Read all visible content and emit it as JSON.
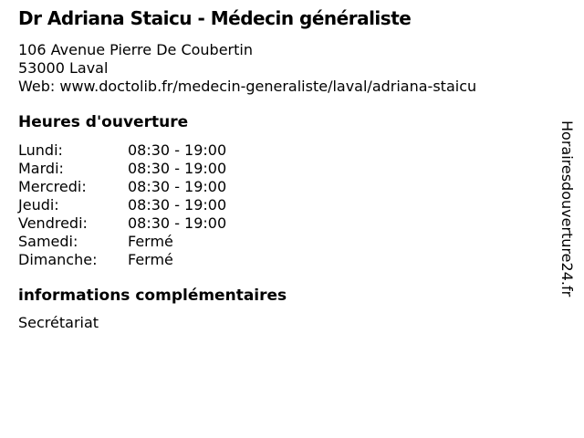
{
  "colors": {
    "background": "#ffffff",
    "text": "#000000"
  },
  "header": {
    "title": "Dr Adriana Staicu - Médecin généraliste",
    "address_line1": "106 Avenue Pierre De Coubertin",
    "address_line2": "53000 Laval",
    "web_label": "Web: ",
    "web_url": "www.doctolib.fr/medecin-generaliste/laval/adriana-staicu"
  },
  "hours": {
    "heading": "Heures d'ouverture",
    "rows": [
      {
        "day": "Lundi:",
        "time": "08:30 - 19:00"
      },
      {
        "day": "Mardi:",
        "time": "08:30 - 19:00"
      },
      {
        "day": "Mercredi:",
        "time": "08:30 - 19:00"
      },
      {
        "day": "Jeudi:",
        "time": "08:30 - 19:00"
      },
      {
        "day": "Vendredi:",
        "time": "08:30 - 19:00"
      },
      {
        "day": "Samedi:",
        "time": "Fermé"
      },
      {
        "day": "Dimanche:",
        "time": "Fermé"
      }
    ]
  },
  "extra": {
    "heading": "informations complémentaires",
    "text": "Secrétariat"
  },
  "watermark": "Horairesdouverture24.fr"
}
